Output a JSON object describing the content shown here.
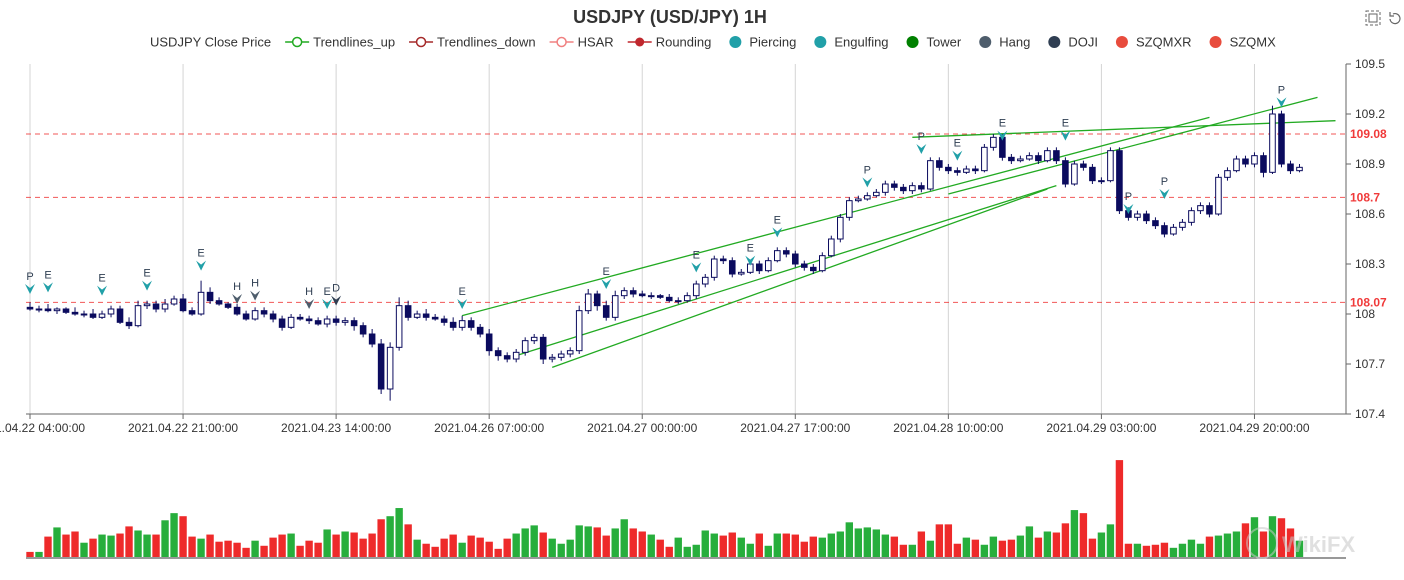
{
  "title": "USDJPY (USD/JPY) 1H",
  "toolbox": {
    "zoom_icon": "zoom-select-icon",
    "reset_icon": "zoom-reset-icon"
  },
  "legend": [
    {
      "label": "USDJPY Close Price",
      "icon": "none",
      "color": "#333333"
    },
    {
      "label": "Trendlines_up",
      "icon": "line-circle",
      "color": "#22aa22"
    },
    {
      "label": "Trendlines_down",
      "icon": "line-circle",
      "color": "#a52a2a"
    },
    {
      "label": "HSAR",
      "icon": "line-circle",
      "color": "#f08080"
    },
    {
      "label": "Rounding",
      "icon": "line-dot",
      "color": "#c0272d"
    },
    {
      "label": "Piercing",
      "icon": "dot",
      "color": "#21a0a8"
    },
    {
      "label": "Engulfing",
      "icon": "dot",
      "color": "#21a0a8"
    },
    {
      "label": "Tower",
      "icon": "dot",
      "color": "#008000"
    },
    {
      "label": "Hang",
      "icon": "dot",
      "color": "#4e5d6c"
    },
    {
      "label": "DOJI",
      "icon": "dot",
      "color": "#2f3e52"
    },
    {
      "label": "SZQMXR",
      "icon": "dot",
      "color": "#e84c3d"
    },
    {
      "label": "SZQMX",
      "icon": "dot",
      "color": "#e84c3d"
    }
  ],
  "watermark": "WikiFX",
  "chart_data": {
    "type": "candlestick",
    "y_ticks": [
      "109.5",
      "109.2",
      "108.9",
      "108.6",
      "108.3",
      "108",
      "107.7",
      "107.4"
    ],
    "ylim": [
      107.4,
      109.5
    ],
    "x_tick_labels": [
      "2021.04.22 04:00:00",
      "2021.04.22 21:00:00",
      "2021.04.23 14:00:00",
      "2021.04.26 07:00:00",
      "2021.04.27 00:00:00",
      "2021.04.27 17:00:00",
      "2021.04.28 10:00:00",
      "2021.04.29 03:00:00",
      "2021.04.29 20:00:00"
    ],
    "x_tick_index": [
      0,
      17,
      34,
      51,
      68,
      85,
      102,
      119,
      136
    ],
    "bar_count": 146,
    "horizontal_levels": [
      {
        "value": 109.08,
        "label": "109.08",
        "color": "#f03a3a"
      },
      {
        "value": 108.7,
        "label": "108.7",
        "color": "#f03a3a"
      },
      {
        "value": 108.07,
        "label": "108.07",
        "color": "#f03a3a"
      }
    ],
    "trendlines": [
      {
        "name": "Trendlines_up",
        "from": [
          48,
          107.99
        ],
        "to": [
          131,
          109.18
        ]
      },
      {
        "name": "Trendlines_up",
        "from": [
          54,
          107.75
        ],
        "to": [
          114,
          108.77
        ]
      },
      {
        "name": "Trendlines_up",
        "from": [
          58,
          107.68
        ],
        "to": [
          113,
          108.75
        ]
      },
      {
        "name": "Trendlines_up",
        "from": [
          98,
          109.06
        ],
        "to": [
          145,
          109.16
        ]
      },
      {
        "name": "Trendlines_up",
        "from": [
          102,
          108.72
        ],
        "to": [
          143,
          109.3
        ]
      }
    ],
    "signals": [
      {
        "i": 0,
        "label": "P",
        "y": 108.12,
        "color": "#21a0a8"
      },
      {
        "i": 2,
        "label": "E",
        "y": 108.13,
        "color": "#21a0a8"
      },
      {
        "i": 8,
        "label": "E",
        "y": 108.11,
        "color": "#21a0a8"
      },
      {
        "i": 13,
        "label": "E",
        "y": 108.14,
        "color": "#21a0a8"
      },
      {
        "i": 19,
        "label": "E",
        "y": 108.26,
        "color": "#21a0a8"
      },
      {
        "i": 23,
        "label": "H",
        "y": 108.06,
        "color": "#4e5d6c"
      },
      {
        "i": 25,
        "label": "H",
        "y": 108.08,
        "color": "#4e5d6c"
      },
      {
        "i": 31,
        "label": "H",
        "y": 108.03,
        "color": "#4e5d6c"
      },
      {
        "i": 33,
        "label": "E",
        "y": 108.03,
        "color": "#21a0a8"
      },
      {
        "i": 34,
        "label": "D",
        "y": 108.05,
        "color": "#2f3e52"
      },
      {
        "i": 48,
        "label": "E",
        "y": 108.03,
        "color": "#21a0a8"
      },
      {
        "i": 64,
        "label": "E",
        "y": 108.15,
        "color": "#21a0a8"
      },
      {
        "i": 74,
        "label": "E",
        "y": 108.25,
        "color": "#21a0a8"
      },
      {
        "i": 80,
        "label": "E",
        "y": 108.29,
        "color": "#21a0a8"
      },
      {
        "i": 83,
        "label": "E",
        "y": 108.46,
        "color": "#21a0a8"
      },
      {
        "i": 93,
        "label": "P",
        "y": 108.76,
        "color": "#21a0a8"
      },
      {
        "i": 99,
        "label": "P",
        "y": 108.96,
        "color": "#21a0a8"
      },
      {
        "i": 103,
        "label": "E",
        "y": 108.92,
        "color": "#21a0a8"
      },
      {
        "i": 108,
        "label": "E",
        "y": 109.04,
        "color": "#21a0a8"
      },
      {
        "i": 115,
        "label": "E",
        "y": 109.04,
        "color": "#21a0a8"
      },
      {
        "i": 122,
        "label": "P",
        "y": 108.6,
        "color": "#21a0a8"
      },
      {
        "i": 126,
        "label": "P",
        "y": 108.69,
        "color": "#21a0a8"
      },
      {
        "i": 139,
        "label": "P",
        "y": 109.24,
        "color": "#21a0a8"
      }
    ],
    "candles": [
      [
        108.04,
        108.03,
        108.07,
        108.02,
        5
      ],
      [
        108.03,
        108.03,
        108.05,
        108.01,
        5
      ],
      [
        108.03,
        108.02,
        108.06,
        108.01,
        20
      ],
      [
        108.02,
        108.03,
        108.04,
        108.0,
        29
      ],
      [
        108.03,
        108.01,
        108.04,
        108.0,
        22
      ],
      [
        108.01,
        108.0,
        108.04,
        107.99,
        25
      ],
      [
        108.0,
        108.0,
        108.02,
        107.98,
        14
      ],
      [
        108.0,
        107.98,
        108.03,
        107.97,
        18
      ],
      [
        107.98,
        108.0,
        108.02,
        107.97,
        22
      ],
      [
        108.0,
        108.03,
        108.05,
        107.98,
        21
      ],
      [
        108.03,
        107.95,
        108.05,
        107.94,
        23
      ],
      [
        107.95,
        107.93,
        107.98,
        107.91,
        30
      ],
      [
        107.93,
        108.05,
        108.08,
        107.92,
        26
      ],
      [
        108.05,
        108.06,
        108.08,
        108.03,
        22
      ],
      [
        108.06,
        108.03,
        108.08,
        108.01,
        22
      ],
      [
        108.03,
        108.06,
        108.09,
        108.01,
        36
      ],
      [
        108.06,
        108.09,
        108.11,
        108.05,
        43
      ],
      [
        108.09,
        108.02,
        108.12,
        108.01,
        40
      ],
      [
        108.02,
        108.0,
        108.04,
        107.99,
        20
      ],
      [
        108.0,
        108.13,
        108.2,
        107.99,
        18
      ],
      [
        108.13,
        108.08,
        108.16,
        108.06,
        22
      ],
      [
        108.08,
        108.06,
        108.1,
        108.05,
        15
      ],
      [
        108.06,
        108.04,
        108.07,
        108.03,
        16
      ],
      [
        108.04,
        108.0,
        108.06,
        107.99,
        14
      ],
      [
        108.0,
        107.97,
        108.02,
        107.96,
        9
      ],
      [
        107.97,
        108.02,
        108.04,
        107.96,
        16
      ],
      [
        108.02,
        108.0,
        108.04,
        107.98,
        11
      ],
      [
        108.0,
        107.97,
        108.02,
        107.95,
        19
      ],
      [
        107.97,
        107.92,
        107.99,
        107.9,
        22
      ],
      [
        107.92,
        107.98,
        108.0,
        107.91,
        23
      ],
      [
        107.98,
        107.97,
        108.0,
        107.96,
        11
      ],
      [
        107.97,
        107.96,
        107.99,
        107.94,
        16
      ],
      [
        107.96,
        107.94,
        107.98,
        107.93,
        14
      ],
      [
        107.94,
        107.97,
        107.99,
        107.92,
        27
      ],
      [
        107.97,
        107.95,
        107.99,
        107.93,
        22
      ],
      [
        107.95,
        107.96,
        107.98,
        107.93,
        25
      ],
      [
        107.96,
        107.93,
        107.98,
        107.9,
        24
      ],
      [
        107.93,
        107.88,
        107.95,
        107.86,
        18
      ],
      [
        107.88,
        107.82,
        107.91,
        107.8,
        23
      ],
      [
        107.82,
        107.55,
        107.85,
        107.52,
        37
      ],
      [
        107.55,
        107.8,
        107.83,
        107.48,
        40
      ],
      [
        107.8,
        108.05,
        108.1,
        107.78,
        48
      ],
      [
        108.05,
        107.98,
        108.08,
        107.96,
        32
      ],
      [
        107.98,
        108.0,
        108.02,
        107.97,
        17
      ],
      [
        108.0,
        107.98,
        108.03,
        107.96,
        13
      ],
      [
        107.98,
        107.97,
        108.0,
        107.96,
        10
      ],
      [
        107.97,
        107.95,
        107.99,
        107.93,
        18
      ],
      [
        107.95,
        107.92,
        107.98,
        107.9,
        22
      ],
      [
        107.92,
        107.96,
        107.99,
        107.9,
        14
      ],
      [
        107.96,
        107.92,
        107.98,
        107.9,
        21
      ],
      [
        107.92,
        107.88,
        107.94,
        107.86,
        19
      ],
      [
        107.88,
        107.78,
        107.91,
        107.75,
        15
      ],
      [
        107.78,
        107.75,
        107.8,
        107.72,
        8
      ],
      [
        107.75,
        107.73,
        107.77,
        107.71,
        18
      ],
      [
        107.73,
        107.77,
        107.79,
        107.71,
        23
      ],
      [
        107.77,
        107.84,
        107.86,
        107.75,
        28
      ],
      [
        107.84,
        107.86,
        107.88,
        107.82,
        31
      ],
      [
        107.86,
        107.73,
        107.88,
        107.7,
        24
      ],
      [
        107.73,
        107.74,
        107.76,
        107.71,
        18
      ],
      [
        107.74,
        107.76,
        107.78,
        107.72,
        13
      ],
      [
        107.76,
        107.78,
        107.8,
        107.74,
        17
      ],
      [
        107.78,
        108.02,
        108.05,
        107.76,
        31
      ],
      [
        108.02,
        108.12,
        108.15,
        108.0,
        30
      ],
      [
        108.12,
        108.05,
        108.14,
        108.02,
        29
      ],
      [
        108.05,
        107.98,
        108.08,
        107.96,
        21
      ],
      [
        107.98,
        108.11,
        108.14,
        107.96,
        28
      ],
      [
        108.11,
        108.14,
        108.16,
        108.09,
        37
      ],
      [
        108.14,
        108.12,
        108.16,
        108.1,
        28
      ],
      [
        108.12,
        108.11,
        108.14,
        108.1,
        25
      ],
      [
        108.11,
        108.11,
        108.13,
        108.09,
        22
      ],
      [
        108.11,
        108.1,
        108.12,
        108.09,
        17
      ],
      [
        108.1,
        108.08,
        108.12,
        108.07,
        10
      ],
      [
        108.08,
        108.08,
        108.1,
        108.06,
        19
      ],
      [
        108.08,
        108.11,
        108.13,
        108.07,
        10
      ],
      [
        108.11,
        108.18,
        108.2,
        108.09,
        12
      ],
      [
        108.18,
        108.22,
        108.24,
        108.16,
        26
      ],
      [
        108.22,
        108.33,
        108.35,
        108.2,
        23
      ],
      [
        108.33,
        108.32,
        108.35,
        108.3,
        21
      ],
      [
        108.32,
        108.24,
        108.34,
        108.22,
        24
      ],
      [
        108.24,
        108.25,
        108.27,
        108.23,
        19
      ],
      [
        108.25,
        108.3,
        108.32,
        108.24,
        13
      ],
      [
        108.3,
        108.26,
        108.32,
        108.24,
        23
      ],
      [
        108.26,
        108.32,
        108.34,
        108.25,
        11
      ],
      [
        108.32,
        108.38,
        108.4,
        108.31,
        23
      ],
      [
        108.38,
        108.36,
        108.4,
        108.34,
        23
      ],
      [
        108.36,
        108.3,
        108.38,
        108.28,
        22
      ],
      [
        108.3,
        108.28,
        108.32,
        108.26,
        15
      ],
      [
        108.28,
        108.26,
        108.3,
        108.24,
        20
      ],
      [
        108.26,
        108.35,
        108.37,
        108.25,
        19
      ],
      [
        108.35,
        108.45,
        108.47,
        108.34,
        23
      ],
      [
        108.45,
        108.58,
        108.6,
        108.43,
        25
      ],
      [
        108.58,
        108.68,
        108.7,
        108.56,
        34
      ],
      [
        108.68,
        108.69,
        108.71,
        108.67,
        28
      ],
      [
        108.69,
        108.71,
        108.73,
        108.68,
        29
      ],
      [
        108.71,
        108.73,
        108.75,
        108.7,
        27
      ],
      [
        108.73,
        108.78,
        108.8,
        108.71,
        22
      ],
      [
        108.78,
        108.76,
        108.8,
        108.74,
        20
      ],
      [
        108.76,
        108.74,
        108.78,
        108.72,
        12
      ],
      [
        108.74,
        108.77,
        108.79,
        108.72,
        12
      ],
      [
        108.77,
        108.75,
        108.79,
        108.73,
        25
      ],
      [
        108.75,
        108.92,
        108.94,
        108.74,
        16
      ],
      [
        108.92,
        108.88,
        108.94,
        108.86,
        32
      ],
      [
        108.88,
        108.86,
        108.9,
        108.84,
        32
      ],
      [
        108.86,
        108.85,
        108.88,
        108.83,
        13
      ],
      [
        108.85,
        108.87,
        108.89,
        108.84,
        19
      ],
      [
        108.87,
        108.86,
        108.89,
        108.84,
        17
      ],
      [
        108.86,
        109.0,
        109.02,
        108.85,
        12
      ],
      [
        109.0,
        109.06,
        109.08,
        108.98,
        20
      ],
      [
        109.06,
        108.94,
        109.08,
        108.92,
        16
      ],
      [
        108.94,
        108.92,
        108.96,
        108.9,
        17
      ],
      [
        108.92,
        108.93,
        108.95,
        108.91,
        21
      ],
      [
        108.93,
        108.95,
        108.97,
        108.92,
        30
      ],
      [
        108.95,
        108.92,
        108.97,
        108.9,
        19
      ],
      [
        108.92,
        108.98,
        109.0,
        108.91,
        25
      ],
      [
        108.98,
        108.92,
        109.0,
        108.9,
        24
      ],
      [
        108.92,
        108.78,
        108.94,
        108.76,
        33
      ],
      [
        108.78,
        108.9,
        108.92,
        108.77,
        46
      ],
      [
        108.9,
        108.88,
        108.92,
        108.86,
        43
      ],
      [
        108.88,
        108.8,
        108.9,
        108.78,
        18
      ],
      [
        108.8,
        108.8,
        108.82,
        108.78,
        24
      ],
      [
        108.8,
        108.98,
        109.0,
        108.79,
        32
      ],
      [
        108.98,
        108.62,
        109.0,
        108.6,
        95
      ],
      [
        108.62,
        108.58,
        108.64,
        108.56,
        13
      ],
      [
        108.58,
        108.6,
        108.62,
        108.56,
        13
      ],
      [
        108.6,
        108.56,
        108.62,
        108.54,
        11
      ],
      [
        108.56,
        108.53,
        108.58,
        108.51,
        12
      ],
      [
        108.53,
        108.48,
        108.55,
        108.46,
        14
      ],
      [
        108.48,
        108.52,
        108.54,
        108.47,
        9
      ],
      [
        108.52,
        108.55,
        108.57,
        108.5,
        13
      ],
      [
        108.55,
        108.62,
        108.64,
        108.53,
        17
      ],
      [
        108.62,
        108.65,
        108.67,
        108.6,
        13
      ],
      [
        108.65,
        108.6,
        108.67,
        108.58,
        20
      ],
      [
        108.6,
        108.82,
        108.84,
        108.59,
        21
      ],
      [
        108.82,
        108.86,
        108.88,
        108.8,
        23
      ],
      [
        108.86,
        108.93,
        108.95,
        108.85,
        25
      ],
      [
        108.93,
        108.9,
        108.95,
        108.88,
        33
      ],
      [
        108.9,
        108.95,
        108.97,
        108.88,
        39
      ],
      [
        108.95,
        108.85,
        108.97,
        108.82,
        25
      ],
      [
        108.85,
        109.2,
        109.25,
        108.84,
        40
      ],
      [
        109.2,
        108.9,
        109.22,
        108.88,
        38
      ],
      [
        108.9,
        108.86,
        108.92,
        108.84,
        28
      ],
      [
        108.86,
        108.88,
        108.9,
        108.85,
        16
      ]
    ]
  }
}
